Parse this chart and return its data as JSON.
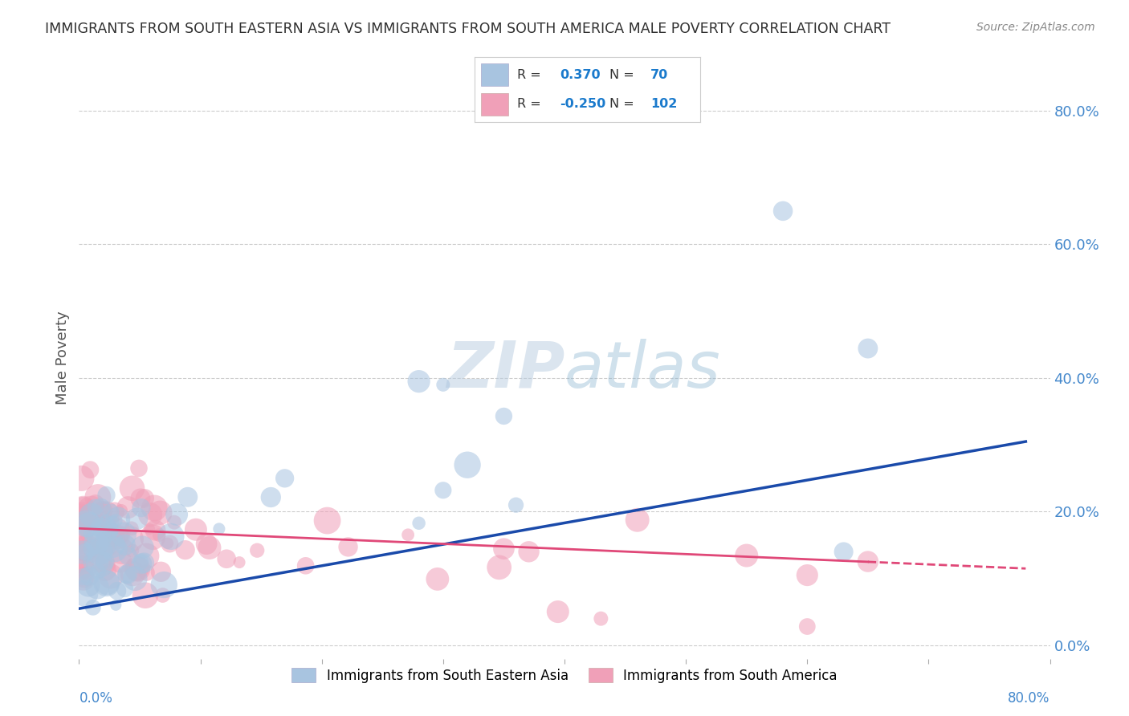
{
  "title": "IMMIGRANTS FROM SOUTH EASTERN ASIA VS IMMIGRANTS FROM SOUTH AMERICA MALE POVERTY CORRELATION CHART",
  "source": "Source: ZipAtlas.com",
  "ylabel": "Male Poverty",
  "xlim": [
    0.0,
    0.8
  ],
  "ylim": [
    -0.02,
    0.88
  ],
  "yticks": [
    0.0,
    0.2,
    0.4,
    0.6,
    0.8
  ],
  "xticks": [
    0.0,
    0.1,
    0.2,
    0.3,
    0.4,
    0.5,
    0.6,
    0.7,
    0.8
  ],
  "blue_R": 0.37,
  "blue_N": 70,
  "pink_R": -0.25,
  "pink_N": 102,
  "blue_color": "#a8c4e0",
  "pink_color": "#f0a0b8",
  "blue_line_color": "#1a4aaa",
  "pink_line_color": "#e04878",
  "watermark_color": "#c5d8ed",
  "background_color": "#ffffff",
  "grid_color": "#cccccc",
  "title_color": "#303030",
  "legend_text_color": "#333333",
  "legend_value_color": "#1a7acc",
  "tick_label_color": "#4488cc",
  "axis_label_color": "#555555"
}
